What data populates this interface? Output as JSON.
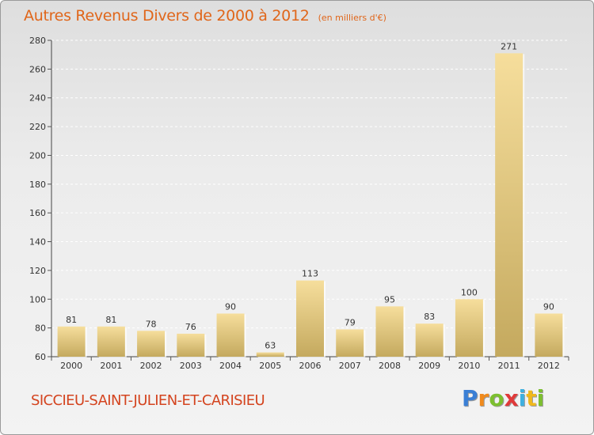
{
  "title": "Autres Revenus Divers de 2000 à 2012",
  "subtitle": "(en milliers d'€)",
  "commune": "SICCIEU-SAINT-JULIEN-ET-CARISIEU",
  "logo": {
    "p": "P",
    "r": "r",
    "o": "o",
    "x": "x",
    "i1": "i",
    "t": "t",
    "i2": "i"
  },
  "colors": {
    "title": "#e0661a",
    "commune": "#d4441f",
    "bar_light": "#f5dc98",
    "bar_dark": "#c8ad62"
  },
  "chart_data": {
    "type": "bar",
    "categories": [
      "2000",
      "2001",
      "2002",
      "2003",
      "2004",
      "2005",
      "2006",
      "2007",
      "2008",
      "2009",
      "2010",
      "2011",
      "2012"
    ],
    "values": [
      81,
      81,
      78,
      76,
      90,
      63,
      113,
      79,
      95,
      83,
      100,
      271,
      90
    ],
    "ylim": [
      60,
      280
    ],
    "yticks": [
      60,
      80,
      100,
      120,
      140,
      160,
      180,
      200,
      220,
      240,
      260,
      280
    ],
    "grid": true,
    "xlabel": "",
    "ylabel": ""
  }
}
